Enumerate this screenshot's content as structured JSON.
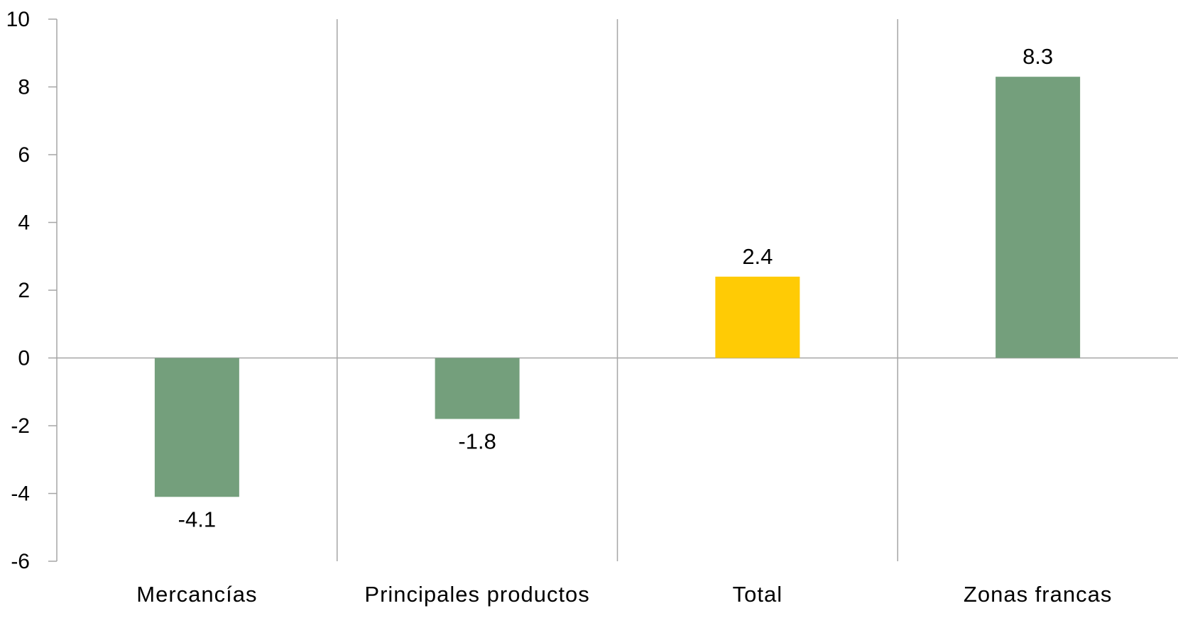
{
  "chart_data": {
    "type": "bar",
    "title": "",
    "xlabel": "",
    "ylabel": "",
    "categories": [
      "Mercancías",
      "Principales productos",
      "Total",
      "Zonas francas"
    ],
    "values": [
      -4.1,
      -1.8,
      2.4,
      8.3
    ],
    "data_labels": [
      "-4.1",
      "-1.8",
      "2.4",
      "8.3"
    ],
    "bar_colors": [
      "#749f7c",
      "#749f7c",
      "#ffcb05",
      "#749f7c"
    ],
    "ylim": [
      -6,
      10
    ],
    "yticks": [
      10,
      8,
      6,
      4,
      2,
      0,
      -2,
      -4,
      -6
    ],
    "ytick_labels": [
      "10",
      "8",
      "6",
      "4",
      "2",
      "0",
      "-2",
      "-4",
      "-6"
    ],
    "grid": "vertical category separators",
    "legend": "none"
  },
  "colors": {
    "axis": "#a6a6a6",
    "text": "#000000"
  }
}
